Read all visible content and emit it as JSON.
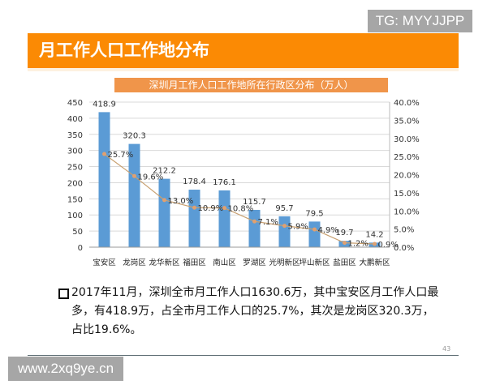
{
  "watermark_top": "TG: MYYJJPP",
  "header": {
    "title": "月工作人口工作地分布"
  },
  "chart_data": {
    "type": "bar+line",
    "title": "深圳月工作人口工作地所在行政区分布（万人）",
    "categories": [
      "宝安区",
      "龙岗区",
      "龙华新区",
      "福田区",
      "南山区",
      "罗湖区",
      "光明新区",
      "坪山新区",
      "盐田区",
      "大鹏新区"
    ],
    "series": [
      {
        "type": "bar",
        "axis": "left",
        "values": [
          418.9,
          320.3,
          212.2,
          178.4,
          176.1,
          115.7,
          95.7,
          79.5,
          19.7,
          14.2
        ],
        "labels": [
          "418.9",
          "320.3",
          "212.2",
          "178.4",
          "176.1",
          "115.7",
          "95.7",
          "79.5",
          "19.7",
          "14.2"
        ],
        "color": "#5b9bd5"
      },
      {
        "type": "line",
        "axis": "right",
        "values": [
          25.7,
          19.6,
          13.0,
          10.9,
          10.8,
          7.1,
          5.9,
          4.9,
          1.2,
          0.9
        ],
        "labels": [
          "25.7%",
          "19.6%",
          "13.0%",
          "10.9%",
          "10.8%",
          "7.1%",
          "5.9%",
          "4.9%",
          "1.2%",
          "0.9%"
        ],
        "color": "#c8a070"
      }
    ],
    "y_left": {
      "range": [
        0,
        450
      ],
      "ticks": [
        "0",
        "50",
        "100",
        "150",
        "200",
        "250",
        "300",
        "350",
        "400",
        "450"
      ]
    },
    "y_right": {
      "range": [
        0,
        40
      ],
      "ticks": [
        "0.0%",
        "5.0%",
        "10.0%",
        "15.0%",
        "20.0%",
        "25.0%",
        "30.0%",
        "35.0%",
        "40.0%"
      ]
    },
    "grid": true
  },
  "note": "2017年11月，深圳全市月工作人口1630.6万，其中宝安区月工作人口最多，有418.9万，占全市月工作人口的25.7%，其次是龙岗区320.3万，占比19.6%。",
  "page_number": "43",
  "watermark_bottom": "www.2xq9ye.cn"
}
